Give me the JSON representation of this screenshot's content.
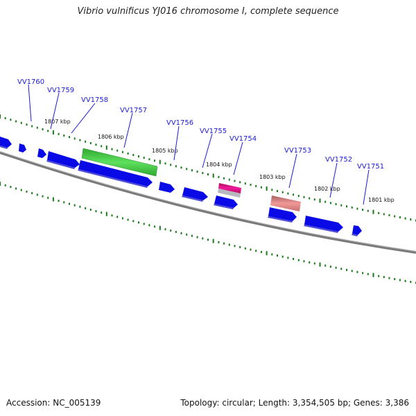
{
  "title": "Vibrio vulnificus YJ016 chromosome I, complete sequence",
  "footer": {
    "accession": "Accession: NC_005139",
    "summary": "Topology: circular; Length: 3,354,505 bp; Genes: 3,386"
  },
  "colors": {
    "gene_fill": "#0a0ae6",
    "gene_shade": "#4b4bd6",
    "highlight_green": "#3fcf3f",
    "highlight_magenta": "#e0107a",
    "highlight_salmon": "#e87f7f",
    "backbone": "#7a7a7a",
    "tick": "#1a7a1a",
    "label": "#1a1ad6"
  },
  "scale_labels": [
    "1807 kbp",
    "1806 kbp",
    "1805 kbp",
    "1804 kbp",
    "1803 kbp",
    "1802 kbp",
    "1801 kbp"
  ],
  "gene_labels": [
    "VV1760",
    "VV1759",
    "VV1758",
    "VV1757",
    "VV1756",
    "VV1755",
    "VV1754",
    "VV1753",
    "VV1752",
    "VV1751"
  ]
}
